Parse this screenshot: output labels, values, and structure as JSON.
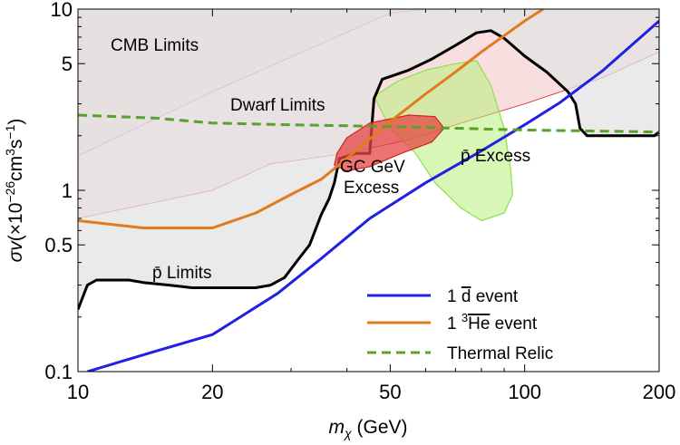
{
  "chart_data": {
    "type": "line",
    "xscale": "log",
    "yscale": "log",
    "xlim": [
      10,
      200
    ],
    "ylim": [
      0.1,
      10
    ],
    "xlabel": "m_χ (GeV)",
    "ylabel": "σv(×10^-26 cm^3 s^-1)",
    "x_ticks": [
      10,
      20,
      50,
      100,
      200
    ],
    "x_tick_labels": [
      "10",
      "20",
      "50",
      "100",
      "200"
    ],
    "y_ticks": [
      0.1,
      0.5,
      1,
      5,
      10
    ],
    "y_tick_labels": [
      "0.1",
      "0.5",
      "1",
      "5",
      "10"
    ],
    "regions": [
      {
        "name": "CMB Limits",
        "label": "CMB Limits",
        "fill": "#e2d9ee",
        "stroke": "#9b59b6",
        "boundary": [
          [
            10,
            1.55
          ],
          [
            20,
            3.5
          ],
          [
            50,
            9.5
          ],
          [
            60,
            10
          ]
        ]
      },
      {
        "name": "Dwarf Limits",
        "label": "Dwarf Limits",
        "fill": "#f5d3d3",
        "stroke": "#d42020",
        "boundary": [
          [
            10,
            0.7
          ],
          [
            20,
            1.0
          ],
          [
            27,
            1.4
          ],
          [
            40,
            1.6
          ],
          [
            55,
            1.9
          ],
          [
            70,
            2.3
          ],
          [
            100,
            3.0
          ],
          [
            150,
            4.2
          ],
          [
            200,
            5.8
          ]
        ]
      },
      {
        "name": "pbar Limits",
        "label": "p̄ Limits",
        "fill": "#e3e3e3",
        "stroke": "#000000",
        "boundary": [
          [
            10,
            0.22
          ],
          [
            10.5,
            0.3
          ],
          [
            11,
            0.32
          ],
          [
            13,
            0.32
          ],
          [
            14,
            0.31
          ],
          [
            16,
            0.3
          ],
          [
            18,
            0.29
          ],
          [
            20,
            0.29
          ],
          [
            25,
            0.29
          ],
          [
            27,
            0.3
          ],
          [
            29,
            0.33
          ],
          [
            31,
            0.41
          ],
          [
            33,
            0.5
          ],
          [
            35,
            0.73
          ],
          [
            36.5,
            0.9
          ],
          [
            37.5,
            1.1
          ],
          [
            38.5,
            1.5
          ],
          [
            42,
            1.6
          ],
          [
            45,
            1.6
          ],
          [
            46,
            3.2
          ],
          [
            48,
            4.1
          ],
          [
            55,
            4.6
          ],
          [
            62,
            5.3
          ],
          [
            70,
            6.3
          ],
          [
            78,
            7.4
          ],
          [
            84,
            7.6
          ],
          [
            90,
            6.9
          ],
          [
            100,
            5.5
          ],
          [
            112,
            4.5
          ],
          [
            125,
            3.5
          ],
          [
            130,
            3.0
          ],
          [
            133,
            2.2
          ],
          [
            138,
            2.0
          ],
          [
            195,
            2.0
          ],
          [
            200,
            2.1
          ]
        ]
      },
      {
        "name": "GC GeV Excess",
        "label_line1": "GC GeV",
        "label_line2": "Excess",
        "fill": "#e64545",
        "stroke": "#d42020",
        "boundary": [
          [
            38,
            1.6
          ],
          [
            40,
            1.95
          ],
          [
            45,
            2.35
          ],
          [
            55,
            2.6
          ],
          [
            63,
            2.55
          ],
          [
            66,
            2.2
          ],
          [
            62,
            1.85
          ],
          [
            53,
            1.6
          ],
          [
            45,
            1.35
          ],
          [
            40,
            1.28
          ],
          [
            37.5,
            1.38
          ]
        ]
      },
      {
        "name": "pbar Excess",
        "label": "p̄ Excess",
        "fill": "#b8f07a",
        "stroke": "#8ee04a",
        "boundary": [
          [
            46,
            3.3
          ],
          [
            52,
            4.0
          ],
          [
            60,
            4.6
          ],
          [
            70,
            5.0
          ],
          [
            78,
            5.2
          ],
          [
            84,
            3.8
          ],
          [
            90,
            2.2
          ],
          [
            93,
            1.3
          ],
          [
            94,
            0.95
          ],
          [
            90,
            0.75
          ],
          [
            80,
            0.68
          ],
          [
            72,
            0.8
          ],
          [
            63,
            1.1
          ],
          [
            57,
            1.6
          ],
          [
            50,
            2.2
          ]
        ]
      }
    ],
    "series": [
      {
        "name": "1 d̄ event",
        "color": "#1f1fe6",
        "style": "solid",
        "x": [
          10.5,
          15,
          20,
          28,
          35,
          45,
          60,
          80,
          100,
          120,
          150,
          200
        ],
        "y": [
          0.1,
          0.13,
          0.16,
          0.27,
          0.42,
          0.7,
          1.1,
          1.65,
          2.3,
          3.05,
          4.6,
          8.6
        ]
      },
      {
        "name": "1 ³He̅ event",
        "color": "#e07b1f",
        "style": "solid",
        "x": [
          10,
          14,
          20,
          25,
          30,
          35,
          40,
          50,
          60,
          70,
          80,
          100,
          110
        ],
        "y": [
          0.68,
          0.62,
          0.62,
          0.75,
          0.95,
          1.15,
          1.5,
          2.4,
          3.4,
          4.5,
          5.8,
          8.6,
          10
        ]
      },
      {
        "name": "Thermal Relic",
        "color": "#5aa02c",
        "style": "dashed",
        "x": [
          10,
          15,
          20,
          30,
          50,
          70,
          100,
          150,
          200
        ],
        "y": [
          2.6,
          2.5,
          2.35,
          2.3,
          2.25,
          2.2,
          2.15,
          2.12,
          2.1
        ]
      }
    ],
    "legend": {
      "position": "bottom-right",
      "entries": [
        {
          "label_main": "1 ",
          "label_sym": "d",
          "label_tail": " event",
          "color": "#1f1fe6",
          "style": "solid"
        },
        {
          "label_main": "1 ",
          "label_sup": "3",
          "label_sym": "He",
          "label_tail": " event",
          "color": "#e07b1f",
          "style": "solid"
        },
        {
          "label_main": "Thermal Relic",
          "label_sup": "",
          "label_sym": "",
          "label_tail": "",
          "color": "#5aa02c",
          "style": "dashed"
        }
      ]
    }
  }
}
